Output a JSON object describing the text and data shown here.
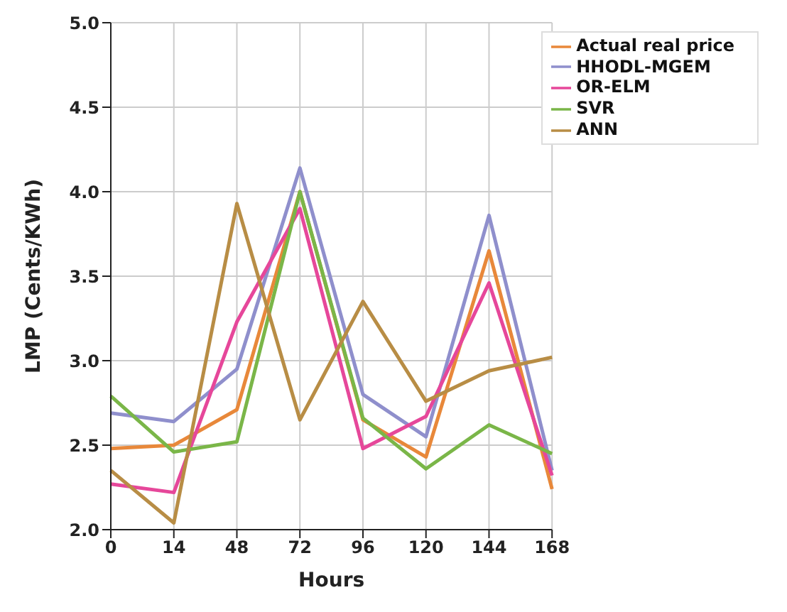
{
  "chart_data": {
    "type": "line",
    "xlabel": "Hours",
    "ylabel": "LMP (Cents/KWh)",
    "categories": [
      "0",
      "14",
      "48",
      "72",
      "96",
      "120",
      "144",
      "168"
    ],
    "series": [
      {
        "name": "Actual real price",
        "color": "#e8883a",
        "values": [
          2.48,
          2.5,
          2.71,
          4.0,
          2.65,
          2.43,
          3.65,
          2.24
        ]
      },
      {
        "name": "HHODL-MGEM",
        "color": "#8f8fcc",
        "values": [
          2.69,
          2.64,
          2.95,
          4.14,
          2.8,
          2.55,
          3.86,
          2.35
        ]
      },
      {
        "name": "OR-ELM",
        "color": "#e6479a",
        "values": [
          2.27,
          2.22,
          3.23,
          3.9,
          2.48,
          2.67,
          3.46,
          2.32
        ]
      },
      {
        "name": "SVR",
        "color": "#7ab648",
        "values": [
          2.79,
          2.46,
          2.52,
          4.0,
          2.66,
          2.36,
          2.62,
          2.45
        ]
      },
      {
        "name": "ANN",
        "color": "#b88d45",
        "values": [
          2.35,
          2.04,
          3.93,
          2.65,
          3.35,
          2.76,
          2.94,
          3.02
        ]
      }
    ],
    "ylim": [
      2,
      5
    ],
    "yticks": [
      {
        "value": 2,
        "label": "2.0"
      },
      {
        "value": 2.5,
        "label": "2.5"
      },
      {
        "value": 3,
        "label": "3.0"
      },
      {
        "value": 3.5,
        "label": "3.5"
      },
      {
        "value": 4,
        "label": "4.0"
      },
      {
        "value": 4.5,
        "label": "4.5"
      },
      {
        "value": 5,
        "label": "5.0"
      }
    ],
    "grid": true,
    "legend": "top right",
    "marker": "none",
    "line_style": "solid"
  }
}
